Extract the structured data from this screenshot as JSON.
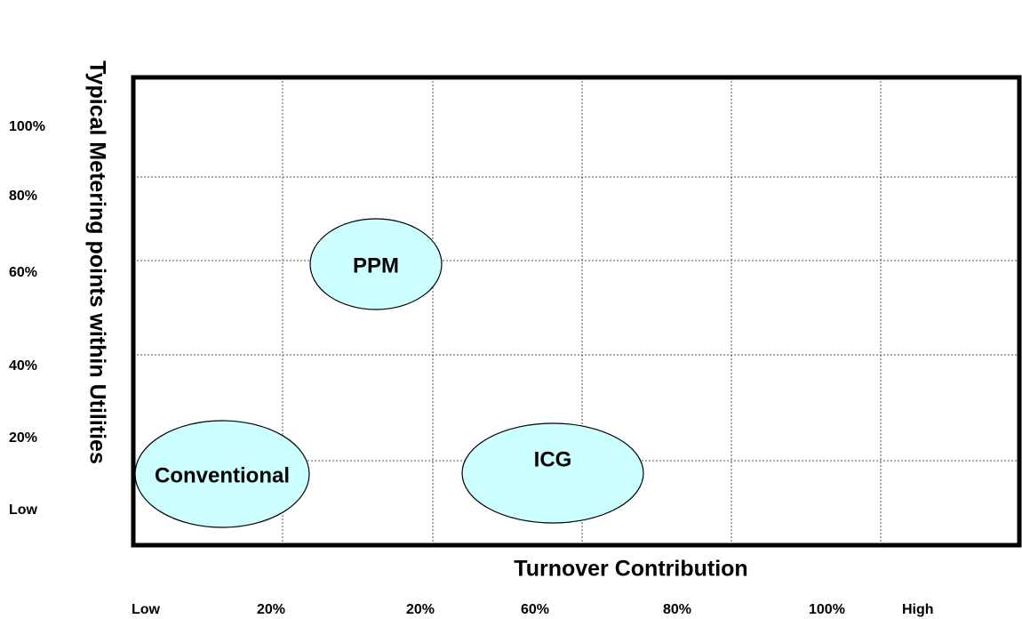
{
  "y_axis": {
    "title": "Typical Metering points within Utilities",
    "tick_labels": [
      "100%",
      "80%",
      "60%",
      "40%",
      "20%",
      "Low"
    ]
  },
  "x_axis": {
    "title": "Turnover Contribution",
    "tick_labels": [
      "Low",
      "20%",
      "20%",
      "60%",
      "80%",
      "100%",
      "High"
    ]
  },
  "bubbles": [
    {
      "label": "PPM"
    },
    {
      "label": "Conventional"
    },
    {
      "label": "ICG"
    }
  ]
}
